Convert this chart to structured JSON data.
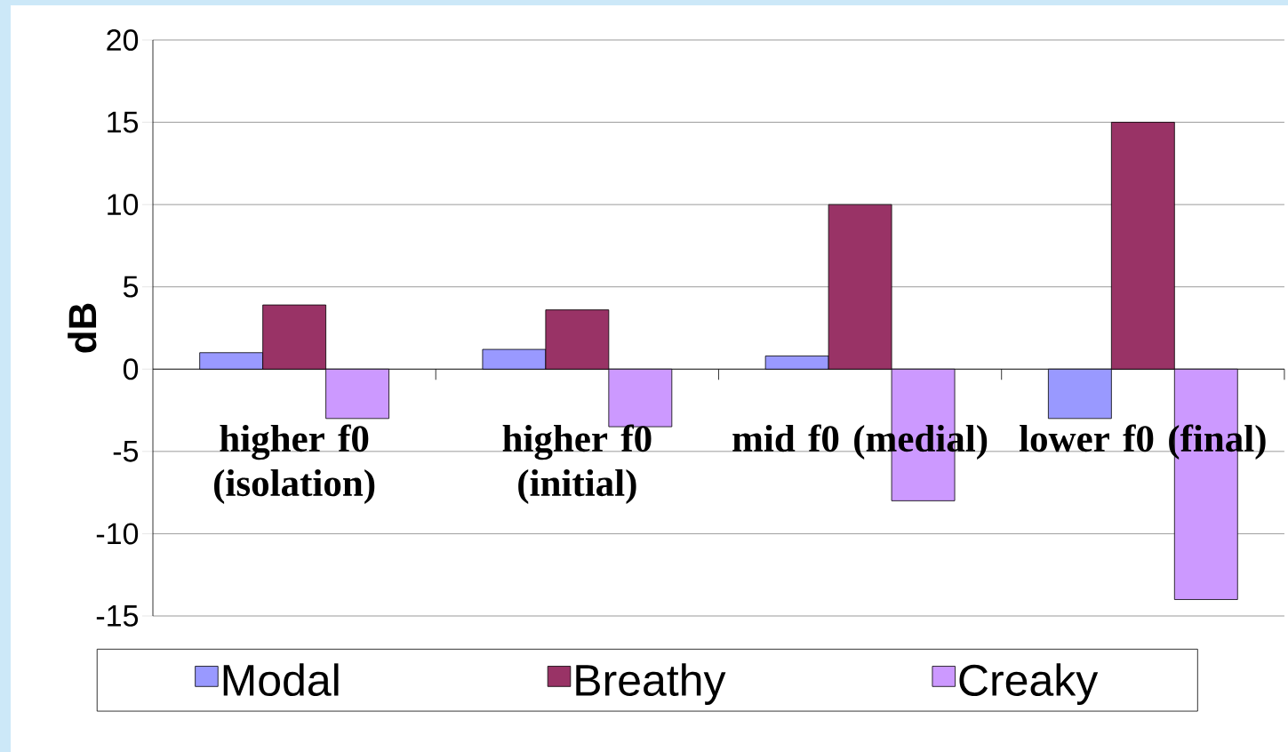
{
  "chart_data": {
    "type": "bar",
    "ylabel": "dB",
    "categories": [
      "higher f0 (isolation)",
      "higher f0 (initial)",
      "mid f0 (medial)",
      "lower f0 (final)"
    ],
    "series": [
      {
        "name": "Modal",
        "color": "#9999ff",
        "values": [
          1,
          1.2,
          0.8,
          -3
        ]
      },
      {
        "name": "Breathy",
        "color": "#993366",
        "values": [
          3.9,
          3.6,
          10,
          15
        ]
      },
      {
        "name": "Creaky",
        "color": "#cc99ff",
        "values": [
          -3,
          -3.5,
          -8,
          -14
        ]
      }
    ],
    "ylim": [
      -15,
      20
    ],
    "yticks": [
      -15,
      -10,
      -5,
      0,
      5,
      10,
      15,
      20
    ],
    "grid": "y",
    "legend": "bottom"
  }
}
